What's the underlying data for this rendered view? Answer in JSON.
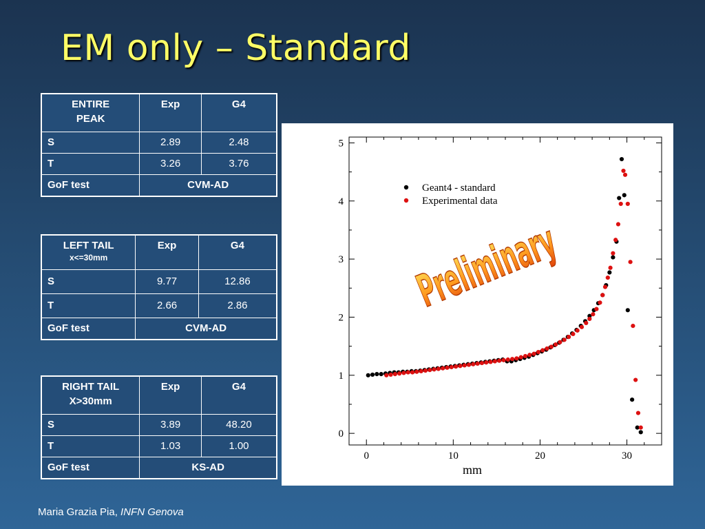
{
  "title": "EM only – Standard",
  "footer": {
    "author": "Maria Grazia Pia,",
    "affiliation": "INFN Genova"
  },
  "tables": [
    {
      "header": {
        "label_line1": "ENTIRE",
        "label_line2": "PEAK",
        "col_exp": "Exp",
        "col_g4": "G4"
      },
      "rows": [
        {
          "label": "S",
          "exp": "2.89",
          "g4": "2.48"
        },
        {
          "label": "T",
          "exp": "3.26",
          "g4": "3.76"
        }
      ],
      "gof": {
        "label": "GoF test",
        "value": "CVM-AD"
      }
    },
    {
      "header": {
        "label_line1": "LEFT TAIL",
        "label_line2": "x<=30mm",
        "col_exp": "Exp",
        "col_g4": "G4"
      },
      "rows": [
        {
          "label": "S",
          "exp": "9.77",
          "g4": "12.86"
        },
        {
          "label": "T",
          "exp": "2.66",
          "g4": "2.86"
        }
      ],
      "gof": {
        "label": "GoF test",
        "value": "CVM-AD"
      }
    },
    {
      "header": {
        "label_line1": "RIGHT TAIL",
        "label_line2": "X>30mm",
        "col_exp": "Exp",
        "col_g4": "G4"
      },
      "rows": [
        {
          "label": "S",
          "exp": "3.89",
          "g4": "48.20"
        },
        {
          "label": "T",
          "exp": "1.03",
          "g4": "1.00"
        }
      ],
      "gof": {
        "label": "GoF test",
        "value": "KS-AD"
      }
    }
  ],
  "watermark": "Preliminary",
  "chart_data": {
    "type": "scatter",
    "title": "",
    "xlabel": "mm",
    "ylabel": "",
    "xlim": [
      -2,
      34
    ],
    "ylim": [
      -0.2,
      5.1
    ],
    "xticks": [
      0,
      10,
      20,
      30
    ],
    "yticks": [
      0,
      1,
      2,
      3,
      4,
      5
    ],
    "legend_position": "top-right",
    "series": [
      {
        "name": "Geant4 - standard",
        "color": "#000000",
        "points": [
          [
            0.2,
            1.0
          ],
          [
            0.7,
            1.01
          ],
          [
            1.2,
            1.02
          ],
          [
            1.7,
            1.02
          ],
          [
            2.2,
            1.03
          ],
          [
            2.7,
            1.04
          ],
          [
            3.2,
            1.05
          ],
          [
            3.7,
            1.05
          ],
          [
            4.2,
            1.06
          ],
          [
            4.7,
            1.06
          ],
          [
            5.2,
            1.07
          ],
          [
            5.7,
            1.07
          ],
          [
            6.2,
            1.08
          ],
          [
            6.7,
            1.09
          ],
          [
            7.2,
            1.1
          ],
          [
            7.7,
            1.11
          ],
          [
            8.2,
            1.12
          ],
          [
            8.7,
            1.13
          ],
          [
            9.2,
            1.14
          ],
          [
            9.7,
            1.15
          ],
          [
            10.2,
            1.16
          ],
          [
            10.7,
            1.17
          ],
          [
            11.2,
            1.18
          ],
          [
            11.7,
            1.19
          ],
          [
            12.2,
            1.2
          ],
          [
            12.7,
            1.21
          ],
          [
            13.2,
            1.22
          ],
          [
            13.7,
            1.23
          ],
          [
            14.2,
            1.24
          ],
          [
            14.7,
            1.25
          ],
          [
            15.2,
            1.26
          ],
          [
            15.7,
            1.27
          ],
          [
            16.2,
            1.24
          ],
          [
            16.7,
            1.24
          ],
          [
            17.2,
            1.26
          ],
          [
            17.7,
            1.28
          ],
          [
            18.2,
            1.3
          ],
          [
            18.7,
            1.32
          ],
          [
            19.2,
            1.35
          ],
          [
            19.7,
            1.38
          ],
          [
            20.2,
            1.41
          ],
          [
            20.7,
            1.44
          ],
          [
            21.2,
            1.48
          ],
          [
            21.7,
            1.52
          ],
          [
            22.2,
            1.56
          ],
          [
            22.7,
            1.61
          ],
          [
            23.2,
            1.66
          ],
          [
            23.7,
            1.72
          ],
          [
            24.2,
            1.78
          ],
          [
            24.7,
            1.85
          ],
          [
            25.2,
            1.93
          ],
          [
            25.7,
            2.02
          ],
          [
            26.2,
            2.12
          ],
          [
            26.7,
            2.24
          ],
          [
            27.2,
            2.38
          ],
          [
            27.6,
            2.55
          ],
          [
            28.0,
            2.77
          ],
          [
            28.4,
            3.03
          ],
          [
            28.8,
            3.3
          ],
          [
            29.1,
            4.05
          ],
          [
            29.4,
            4.72
          ],
          [
            29.7,
            4.1
          ],
          [
            30.1,
            2.12
          ],
          [
            30.6,
            0.58
          ],
          [
            31.2,
            0.1
          ],
          [
            31.6,
            0.02
          ]
        ]
      },
      {
        "name": "Experimental data",
        "color": "#dd1111",
        "points": [
          [
            2.3,
            1.0
          ],
          [
            2.8,
            1.01
          ],
          [
            3.3,
            1.02
          ],
          [
            3.8,
            1.03
          ],
          [
            4.3,
            1.04
          ],
          [
            4.8,
            1.05
          ],
          [
            5.3,
            1.05
          ],
          [
            5.8,
            1.06
          ],
          [
            6.3,
            1.07
          ],
          [
            6.8,
            1.08
          ],
          [
            7.3,
            1.09
          ],
          [
            7.8,
            1.1
          ],
          [
            8.3,
            1.11
          ],
          [
            8.8,
            1.12
          ],
          [
            9.3,
            1.13
          ],
          [
            9.8,
            1.14
          ],
          [
            10.3,
            1.15
          ],
          [
            10.8,
            1.16
          ],
          [
            11.3,
            1.17
          ],
          [
            11.8,
            1.18
          ],
          [
            12.3,
            1.19
          ],
          [
            12.8,
            1.2
          ],
          [
            13.3,
            1.21
          ],
          [
            13.8,
            1.22
          ],
          [
            14.3,
            1.23
          ],
          [
            14.8,
            1.24
          ],
          [
            15.3,
            1.25
          ],
          [
            15.8,
            1.26
          ],
          [
            16.3,
            1.27
          ],
          [
            16.8,
            1.28
          ],
          [
            17.3,
            1.29
          ],
          [
            17.8,
            1.31
          ],
          [
            18.3,
            1.33
          ],
          [
            18.8,
            1.35
          ],
          [
            19.3,
            1.37
          ],
          [
            19.8,
            1.4
          ],
          [
            20.3,
            1.43
          ],
          [
            20.8,
            1.46
          ],
          [
            21.3,
            1.49
          ],
          [
            21.8,
            1.53
          ],
          [
            22.3,
            1.57
          ],
          [
            22.8,
            1.61
          ],
          [
            23.3,
            1.66
          ],
          [
            23.8,
            1.71
          ],
          [
            24.3,
            1.77
          ],
          [
            24.8,
            1.83
          ],
          [
            25.3,
            1.9
          ],
          [
            25.7,
            1.97
          ],
          [
            26.1,
            2.05
          ],
          [
            26.5,
            2.14
          ],
          [
            26.9,
            2.25
          ],
          [
            27.2,
            2.38
          ],
          [
            27.5,
            2.52
          ],
          [
            27.8,
            2.68
          ],
          [
            28.1,
            2.85
          ],
          [
            28.4,
            3.1
          ],
          [
            28.7,
            3.33
          ],
          [
            29.0,
            3.6
          ],
          [
            29.3,
            3.95
          ],
          [
            29.6,
            4.52
          ],
          [
            29.8,
            4.45
          ],
          [
            30.1,
            3.95
          ],
          [
            30.4,
            2.95
          ],
          [
            30.7,
            1.85
          ],
          [
            31.0,
            0.92
          ],
          [
            31.3,
            0.35
          ],
          [
            31.6,
            0.1
          ]
        ]
      }
    ]
  }
}
